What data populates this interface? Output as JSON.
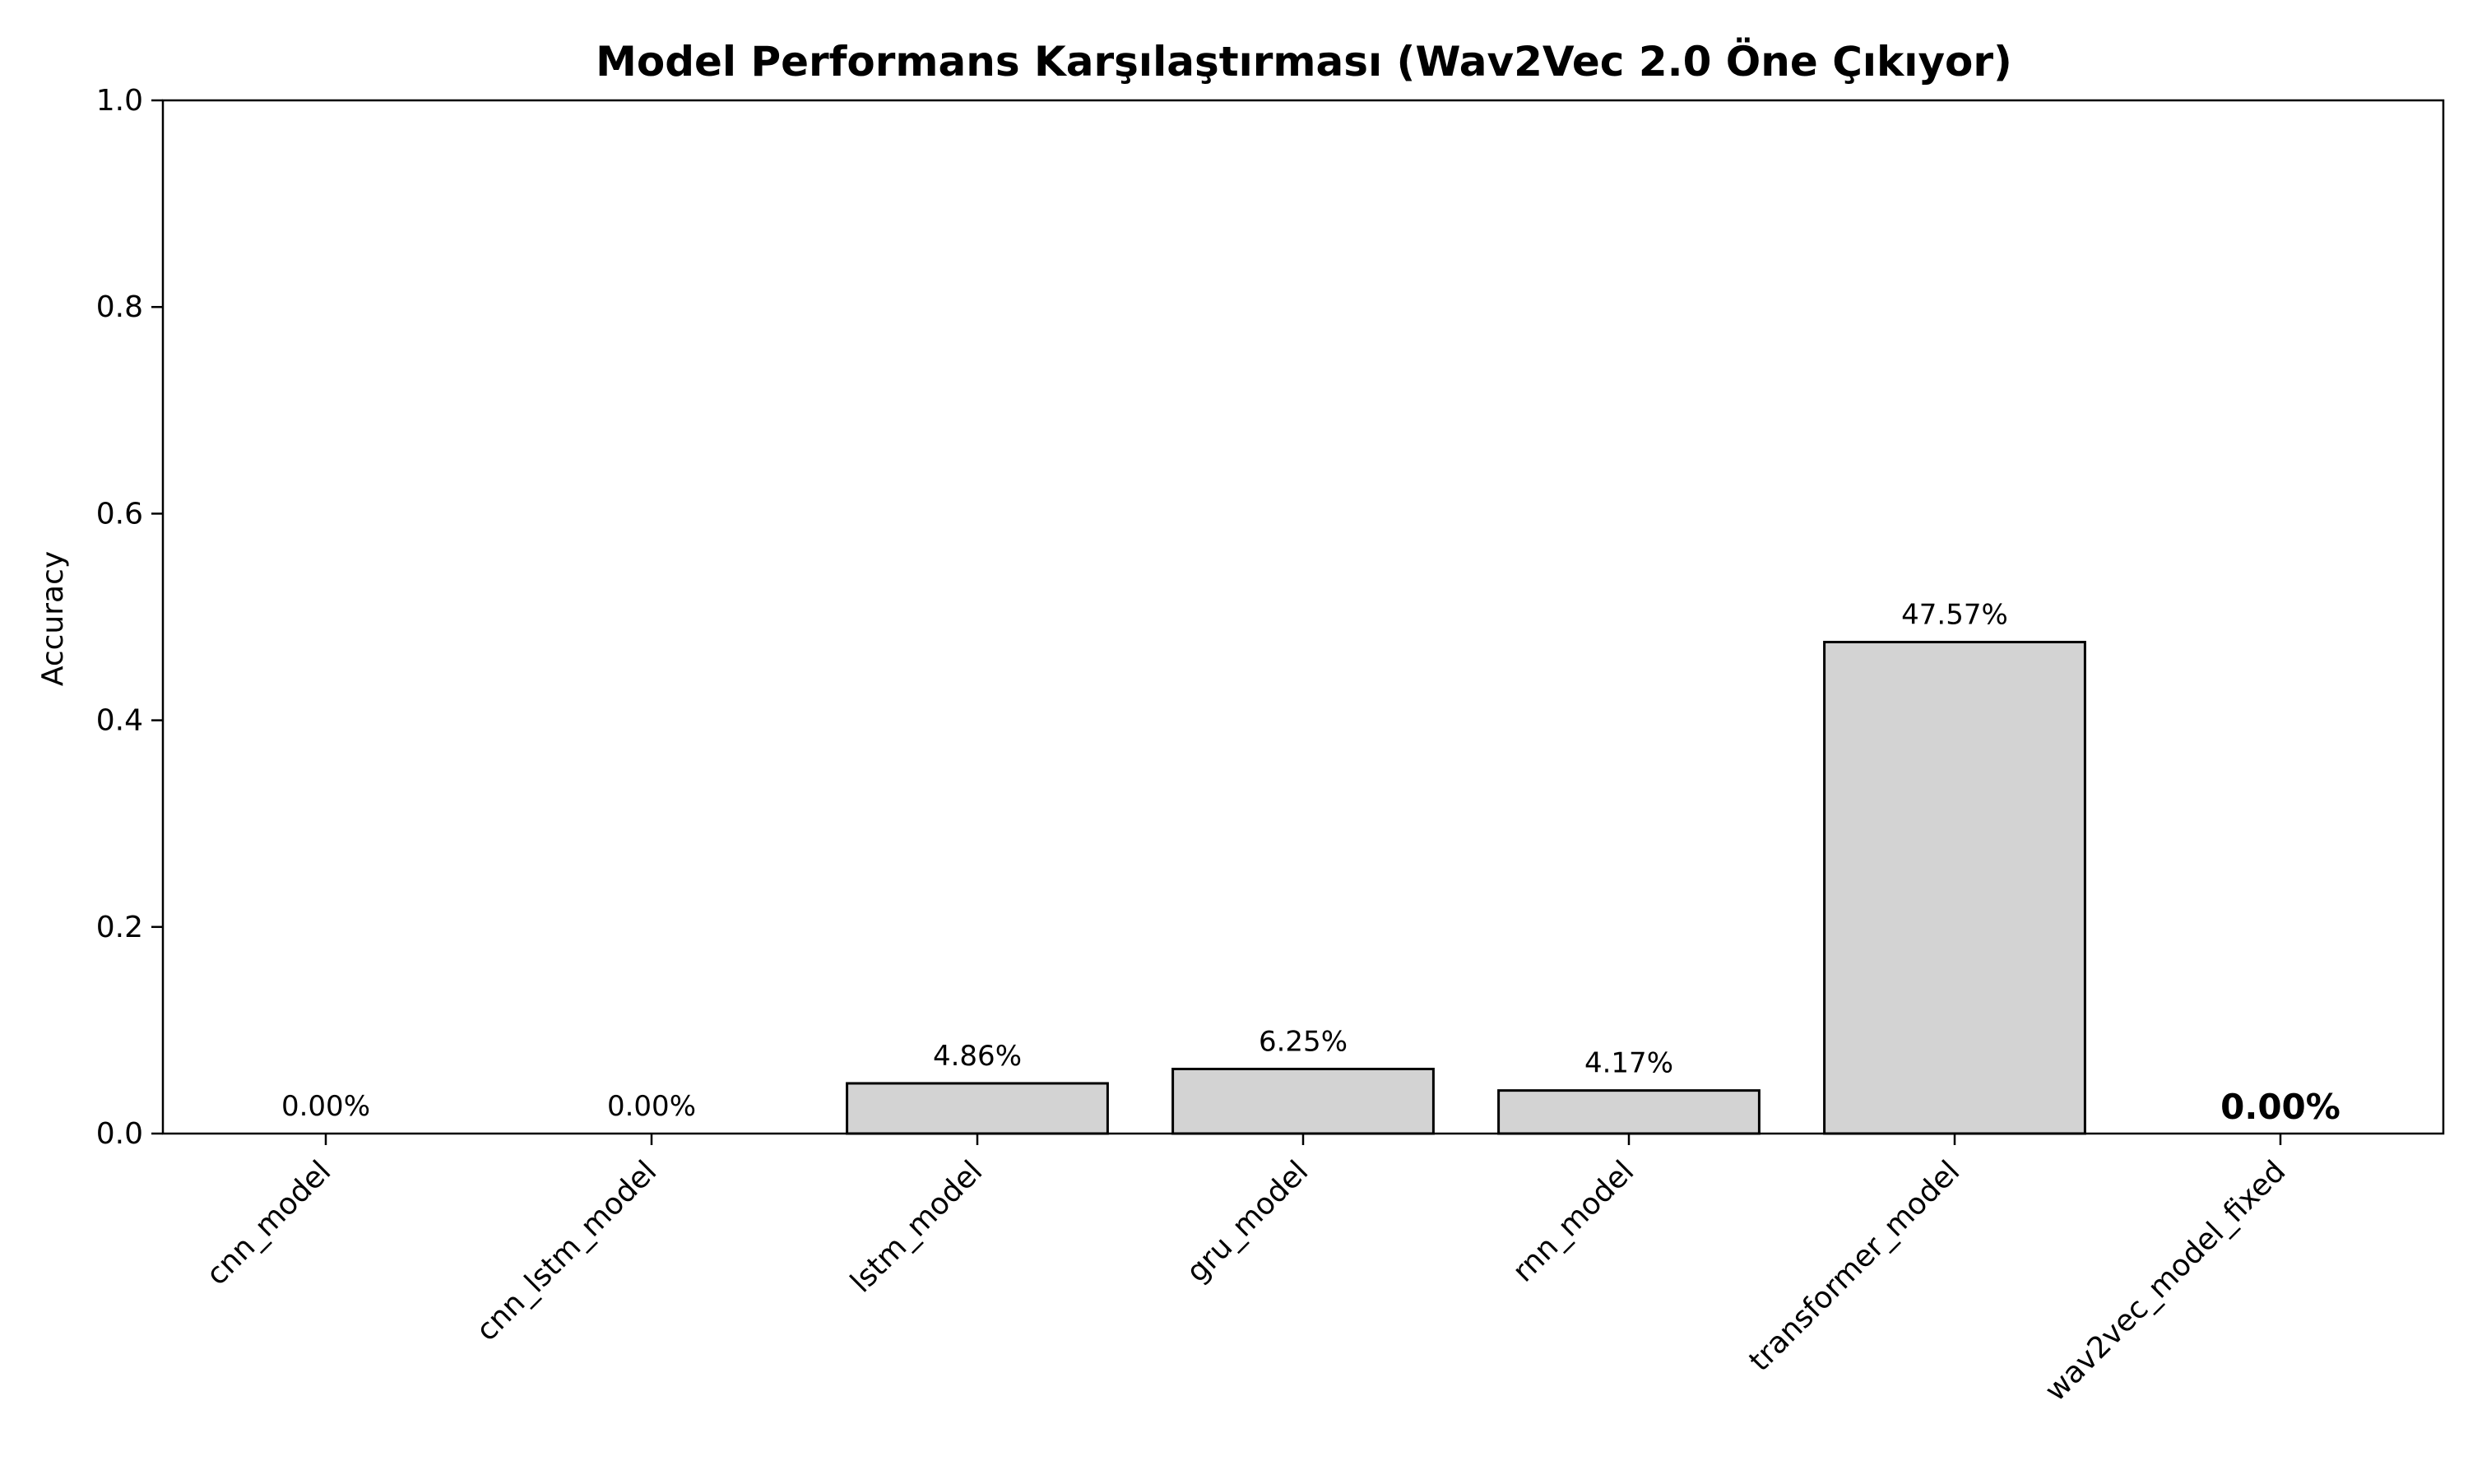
{
  "chart_data": {
    "type": "bar",
    "title": "Model Performans Karşılaştırması (Wav2Vec 2.0 Öne Çıkıyor)",
    "xlabel": "",
    "ylabel": "Accuracy",
    "ylim": [
      0,
      1.0
    ],
    "yticks": [
      0.0,
      0.2,
      0.4,
      0.6,
      0.8,
      1.0
    ],
    "ytick_labels": [
      "0.0",
      "0.2",
      "0.4",
      "0.6",
      "0.8",
      "1.0"
    ],
    "categories": [
      "cnn_model",
      "cnn_lstm_model",
      "lstm_model",
      "gru_model",
      "rnn_model",
      "transformer_model",
      "wav2vec_model_fixed"
    ],
    "values": [
      0.0,
      0.0,
      0.0486,
      0.0625,
      0.0417,
      0.4757,
      0.0
    ],
    "value_labels": [
      "0.00%",
      "0.00%",
      "4.86%",
      "6.25%",
      "4.17%",
      "47.57%",
      "0.00%"
    ],
    "highlight_index": 6,
    "grid": false,
    "colors": {
      "bar_fill": "#d3d3d3",
      "bar_edge": "#000000",
      "highlight_edge": "#ff8c00",
      "highlight_label": "#8b0000"
    }
  }
}
